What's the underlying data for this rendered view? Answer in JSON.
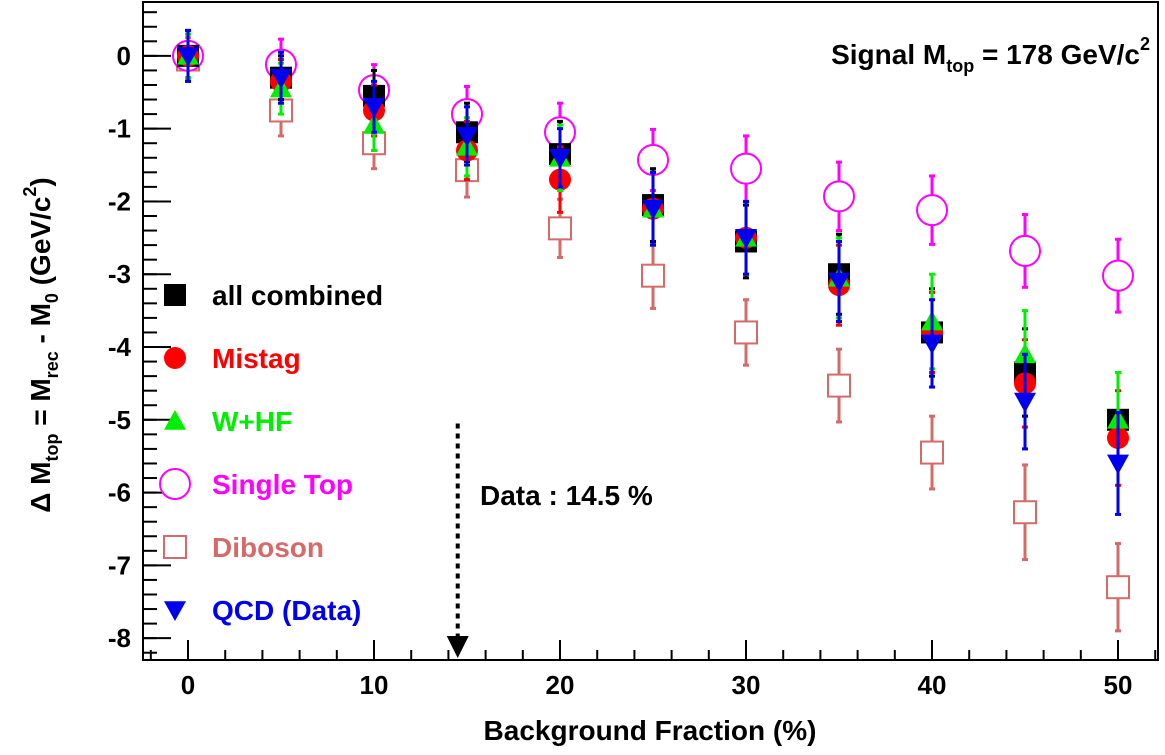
{
  "chart_data": {
    "type": "scatter",
    "title": [
      "Signal M",
      "top",
      " = 178 GeV/c",
      "2"
    ],
    "xlabel": "Background Fraction (%)",
    "ylabel": [
      "Δ M",
      "top",
      " = M",
      "rec",
      " - M",
      "0",
      " (GeV/c",
      "2",
      ")"
    ],
    "annotation": "Data : 14.5 %",
    "arrow": {
      "x": 14.5,
      "y": -5.05
    },
    "x": [
      0,
      5,
      10,
      15,
      20,
      25,
      30,
      35,
      40,
      45,
      50
    ],
    "xlim": [
      -2.42,
      52.15
    ],
    "xticks": [
      0,
      10,
      20,
      30,
      40,
      50
    ],
    "ylim": [
      -8.3,
      0.74
    ],
    "yticks": [
      0,
      -1,
      -2,
      -3,
      -4,
      -5,
      -6,
      -7,
      -8
    ],
    "series": [
      {
        "name": "Diboson",
        "color": "#d46a6a",
        "marker": "open-square",
        "values": [
          -0.05,
          -0.75,
          -1.2,
          -1.57,
          -2.37,
          -3.02,
          -3.8,
          -4.53,
          -5.45,
          -6.27,
          -7.3
        ],
        "errors": [
          0.3,
          0.35,
          0.35,
          0.37,
          0.4,
          0.45,
          0.45,
          0.5,
          0.5,
          0.65,
          0.6
        ]
      },
      {
        "name": "Single Top",
        "color": "#ff00ff",
        "marker": "open-circle",
        "values": [
          0,
          -0.12,
          -0.47,
          -0.8,
          -1.05,
          -1.43,
          -1.55,
          -1.93,
          -2.12,
          -2.68,
          -3.02
        ],
        "errors": [
          0.35,
          0.35,
          0.35,
          0.38,
          0.4,
          0.42,
          0.45,
          0.47,
          0.47,
          0.5,
          0.5
        ]
      },
      {
        "name": "all combined",
        "color": "#000000",
        "marker": "square",
        "values": [
          0,
          -0.3,
          -0.55,
          -1.05,
          -1.35,
          -2.05,
          -2.55,
          -3.0,
          -3.8,
          -4.35,
          -5.0
        ],
        "errors": [
          0.3,
          0.3,
          0.35,
          0.4,
          0.45,
          0.5,
          0.5,
          0.55,
          0.6,
          0.6,
          0.65
        ]
      },
      {
        "name": "Mistag",
        "color": "#ff0000",
        "marker": "circle",
        "values": [
          0,
          -0.35,
          -0.75,
          -1.3,
          -1.7,
          -2.1,
          -2.5,
          -3.15,
          -3.8,
          -4.5,
          -5.25
        ],
        "errors": [
          0.3,
          0.3,
          0.35,
          0.4,
          0.45,
          0.5,
          0.5,
          0.55,
          0.55,
          0.6,
          0.65
        ]
      },
      {
        "name": "W+HF",
        "color": "#00ee00",
        "marker": "triangle-up",
        "values": [
          0,
          -0.45,
          -0.95,
          -1.25,
          -1.4,
          -2.1,
          -2.5,
          -3.05,
          -3.65,
          -4.1,
          -5.0
        ],
        "errors": [
          0.3,
          0.35,
          0.35,
          0.4,
          0.45,
          0.5,
          0.5,
          0.55,
          0.65,
          0.6,
          0.65
        ]
      },
      {
        "name": "QCD (Data)",
        "color": "#0000ee",
        "marker": "triangle-down",
        "values": [
          0,
          -0.3,
          -0.7,
          -1.1,
          -1.4,
          -2.1,
          -2.5,
          -3.1,
          -3.95,
          -4.75,
          -5.6
        ],
        "errors": [
          0.35,
          0.35,
          0.35,
          0.4,
          0.4,
          0.5,
          0.5,
          0.55,
          0.6,
          0.65,
          0.7
        ]
      }
    ],
    "legend_order": [
      2,
      3,
      4,
      1,
      0,
      5
    ]
  }
}
